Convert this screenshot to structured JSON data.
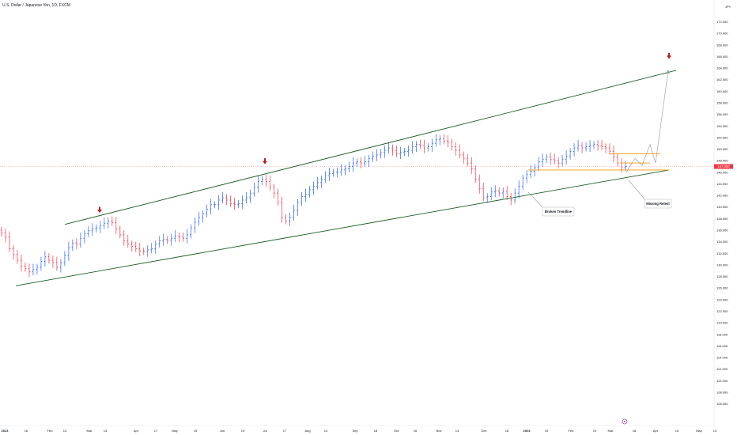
{
  "header": {
    "symbol": "U.S. Dollar / Japanese Yen, 1D, FXCM",
    "currency": "JPY"
  },
  "chart_data": {
    "type": "candlestick",
    "title": "U.S. Dollar / Japanese Yen, 1D, FXCM",
    "yaxis": {
      "min": 106,
      "max": 172,
      "step": 2,
      "position": "right"
    },
    "last_price_label": "147.000",
    "x_ticks": [
      "2023",
      "16",
      "Feb",
      "13",
      "Mar",
      "13",
      "Apr",
      "17",
      "May",
      "15",
      "Jun",
      "19",
      "Jul",
      "17",
      "Aug",
      "14",
      "Sep",
      "18",
      "Oct",
      "16",
      "Nov",
      "13",
      "Dec",
      "18",
      "2024",
      "15",
      "Feb",
      "19",
      "Mar",
      "18",
      "Apr",
      "15",
      "May",
      "13"
    ],
    "bold_ticks": [
      "2023",
      "2024"
    ],
    "prices": [
      135.5,
      134.8,
      132.8,
      131.8,
      130.8,
      129.8,
      129.4,
      128.8,
      129.2,
      129.6,
      130.6,
      131.4,
      130.8,
      130.4,
      129.6,
      130.4,
      131.6,
      133.0,
      133.8,
      133.6,
      134.6,
      135.4,
      135.9,
      136.2,
      136.4,
      136.8,
      137.2,
      137.6,
      137.3,
      136.2,
      135.2,
      134.2,
      133.6,
      133.2,
      132.8,
      132.4,
      132.3,
      132.6,
      132.8,
      133.6,
      134.2,
      134.4,
      134.2,
      134.6,
      135.0,
      134.8,
      134.6,
      135.2,
      136.4,
      137.4,
      138.2,
      138.8,
      139.6,
      140.4,
      140.4,
      141.2,
      141.6,
      141.2,
      140.6,
      140.4,
      140.6,
      141.2,
      141.6,
      142.4,
      143.4,
      144.4,
      144.8,
      144.4,
      143.4,
      142.4,
      140.8,
      138.2,
      137.6,
      138.2,
      139.4,
      140.8,
      141.8,
      142.2,
      143.0,
      143.6,
      144.2,
      144.8,
      145.4,
      145.8,
      146.0,
      146.0,
      146.4,
      146.6,
      147.0,
      147.6,
      147.8,
      147.6,
      147.8,
      148.4,
      148.8,
      149.0,
      149.4,
      149.8,
      150.2,
      149.8,
      149.2,
      149.4,
      149.6,
      149.8,
      150.4,
      150.8,
      150.6,
      150.2,
      150.4,
      151.0,
      151.6,
      151.8,
      151.4,
      151.2,
      150.4,
      149.8,
      149.0,
      148.4,
      147.6,
      146.6,
      144.8,
      143.2,
      141.6,
      141.8,
      142.6,
      142.8,
      142.4,
      142.6,
      141.8,
      141.2,
      142.4,
      143.6,
      145.0,
      145.6,
      146.2,
      146.8,
      147.8,
      148.2,
      148.6,
      148.2,
      148.0,
      147.6,
      148.2,
      148.8,
      149.6,
      150.2,
      150.6,
      150.2,
      150.4,
      150.6,
      150.8,
      150.6,
      150.4,
      150.2,
      149.6,
      148.6,
      147.6,
      146.8,
      147.0
    ],
    "trendlines": [
      {
        "color": "#1b5e20",
        "from": [
          "2023-01-03",
          126.4
        ],
        "to": [
          "2024-03-25",
          146.4
        ]
      },
      {
        "color": "#1b5e20",
        "from": [
          "2023-02-22",
          137.0
        ],
        "to": [
          "2024-04-15",
          163.6
        ]
      }
    ],
    "horizontal_levels": [
      {
        "color": "#ff9800",
        "value": 146.4
      },
      {
        "color": "#ff9800",
        "value": 149.2
      },
      {
        "color": "#ff9800",
        "value": 147.6
      }
    ],
    "annotations": [
      {
        "text": "Broken Trendline"
      },
      {
        "text": "Missing Retest"
      }
    ],
    "marker_arrows": [
      {
        "date": "Mar",
        "value": 139.2
      },
      {
        "date": "Jul",
        "value": 147.6
      },
      {
        "date": "Apr",
        "value": 165.8
      }
    ],
    "projection_path": [
      146.0,
      148.4,
      147.2,
      150.8,
      147.6,
      163.6
    ],
    "colors": {
      "up": "#2962ff",
      "down": "#f23645",
      "trend": "#1b5e20",
      "level": "#ff9800",
      "marker": "#b71c1c",
      "last_price": "#f23645"
    },
    "grid": false
  }
}
